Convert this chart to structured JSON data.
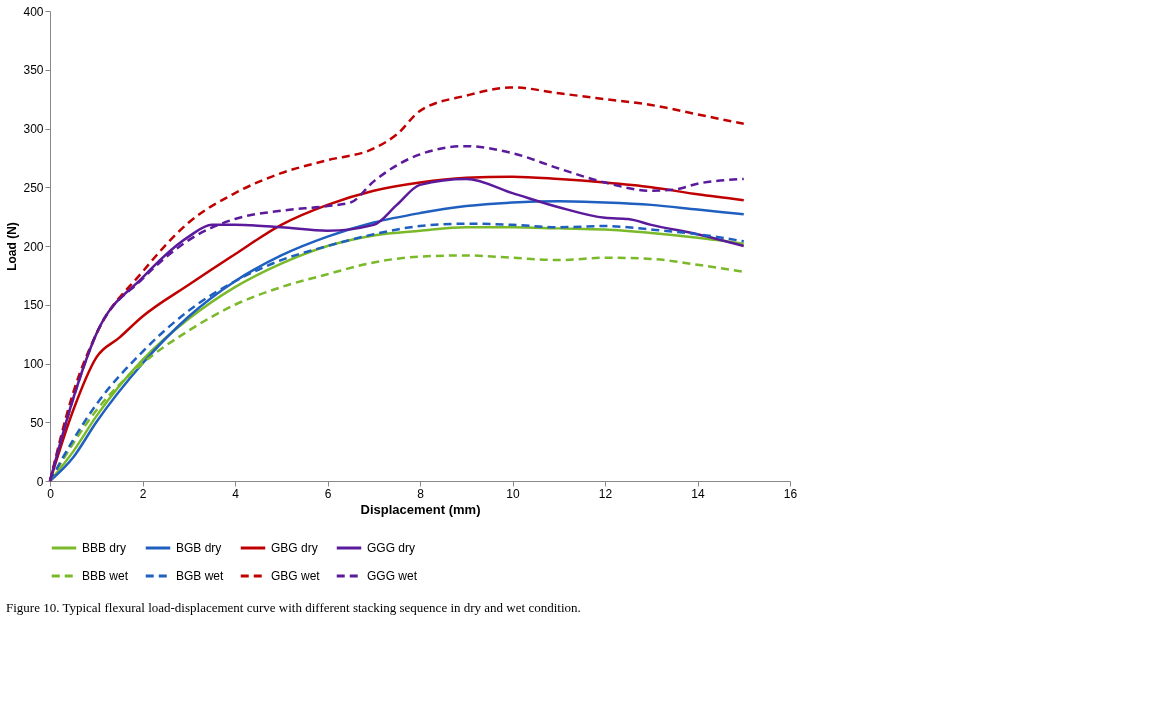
{
  "chart_data": {
    "type": "line",
    "xlabel": "Displacement (mm)",
    "ylabel": "Load (N)",
    "xlim": [
      0,
      16
    ],
    "xticks": [
      0,
      2,
      4,
      6,
      8,
      10,
      12,
      14,
      16
    ],
    "ylim": [
      0,
      400
    ],
    "yticks": [
      0,
      50,
      100,
      150,
      200,
      250,
      300,
      350,
      400
    ],
    "grid": false,
    "legend": "bottom",
    "marker": "none",
    "annotations": [
      "Figure 10. Typical flexural load-displacement curve with different stacking sequence in dry and wet condition."
    ],
    "series": [
      {
        "name": "BBB dry",
        "color": "#7ab929",
        "line_style": "solid",
        "x": [
          0,
          0.5,
          1,
          2,
          3,
          4,
          5,
          6,
          7,
          8,
          9,
          10,
          11,
          12,
          13,
          14,
          15
        ],
        "values": [
          0,
          25,
          55,
          103,
          138,
          165,
          185,
          200,
          209,
          213,
          216,
          216,
          215,
          214,
          211,
          207,
          202
        ]
      },
      {
        "name": "BGB dry",
        "color": "#1f5fbf",
        "line_style": "solid",
        "x": [
          0,
          0.5,
          1,
          2,
          3,
          4,
          5,
          6,
          7,
          8,
          9,
          10,
          11,
          12,
          13,
          14,
          15
        ],
        "values": [
          0,
          20,
          50,
          100,
          140,
          170,
          192,
          208,
          220,
          228,
          234,
          237,
          238,
          237,
          235,
          231,
          227
        ]
      },
      {
        "name": "GBG dry",
        "color": "#c00000",
        "line_style": "solid",
        "x": [
          0,
          0.5,
          1,
          1.5,
          2,
          3,
          4,
          5,
          6,
          7,
          8,
          9,
          10,
          11,
          12,
          13,
          14,
          15
        ],
        "values": [
          0,
          60,
          105,
          122,
          140,
          167,
          193,
          218,
          235,
          247,
          254,
          258,
          259,
          257,
          254,
          250,
          244,
          239
        ]
      },
      {
        "name": "GGG dry",
        "color": "#5b1a9b",
        "line_style": "solid",
        "x": [
          0,
          0.5,
          1,
          2,
          3,
          3.5,
          4,
          5,
          6,
          7,
          7.5,
          8,
          9,
          10,
          11,
          12,
          12.5,
          13,
          14,
          15
        ],
        "values": [
          0,
          70,
          125,
          173,
          208,
          218,
          218,
          216,
          213,
          218,
          235,
          252,
          257,
          245,
          233,
          224,
          223,
          218,
          210,
          200
        ]
      },
      {
        "name": "BBB wet",
        "color": "#7ab929",
        "line_style": "dashed",
        "x": [
          0,
          1,
          2,
          3,
          4,
          5,
          6,
          7,
          8,
          9,
          10,
          11,
          12,
          13,
          14,
          15
        ],
        "values": [
          0,
          60,
          100,
          128,
          150,
          165,
          176,
          186,
          191,
          192,
          190,
          188,
          190,
          189,
          184,
          178
        ]
      },
      {
        "name": "BGB wet",
        "color": "#1f5fbf",
        "line_style": "dashed",
        "x": [
          0,
          0.5,
          1,
          2,
          3,
          4,
          5,
          6,
          7,
          8,
          9,
          10,
          11,
          12,
          13,
          14,
          15
        ],
        "values": [
          0,
          35,
          65,
          110,
          145,
          170,
          188,
          200,
          210,
          217,
          219,
          218,
          216,
          217,
          214,
          210,
          204
        ]
      },
      {
        "name": "GBG wet",
        "color": "#c00000",
        "line_style": "dashed",
        "x": [
          0,
          0.5,
          1,
          2,
          3,
          4,
          5,
          6,
          7,
          7.5,
          8,
          9,
          10,
          11,
          12,
          13,
          14,
          15
        ],
        "values": [
          0,
          75,
          125,
          178,
          220,
          245,
          262,
          273,
          283,
          295,
          315,
          328,
          335,
          330,
          325,
          320,
          312,
          304
        ]
      },
      {
        "name": "GGG wet",
        "color": "#5b1a9b",
        "line_style": "dashed",
        "x": [
          0,
          0.5,
          1,
          2,
          3,
          4,
          5,
          6,
          6.5,
          7,
          8,
          9,
          10,
          11,
          12,
          13,
          13.5,
          14,
          15
        ],
        "values": [
          0,
          70,
          125,
          172,
          205,
          223,
          230,
          234,
          237,
          255,
          278,
          285,
          279,
          266,
          254,
          247,
          248,
          253,
          257
        ]
      }
    ]
  }
}
